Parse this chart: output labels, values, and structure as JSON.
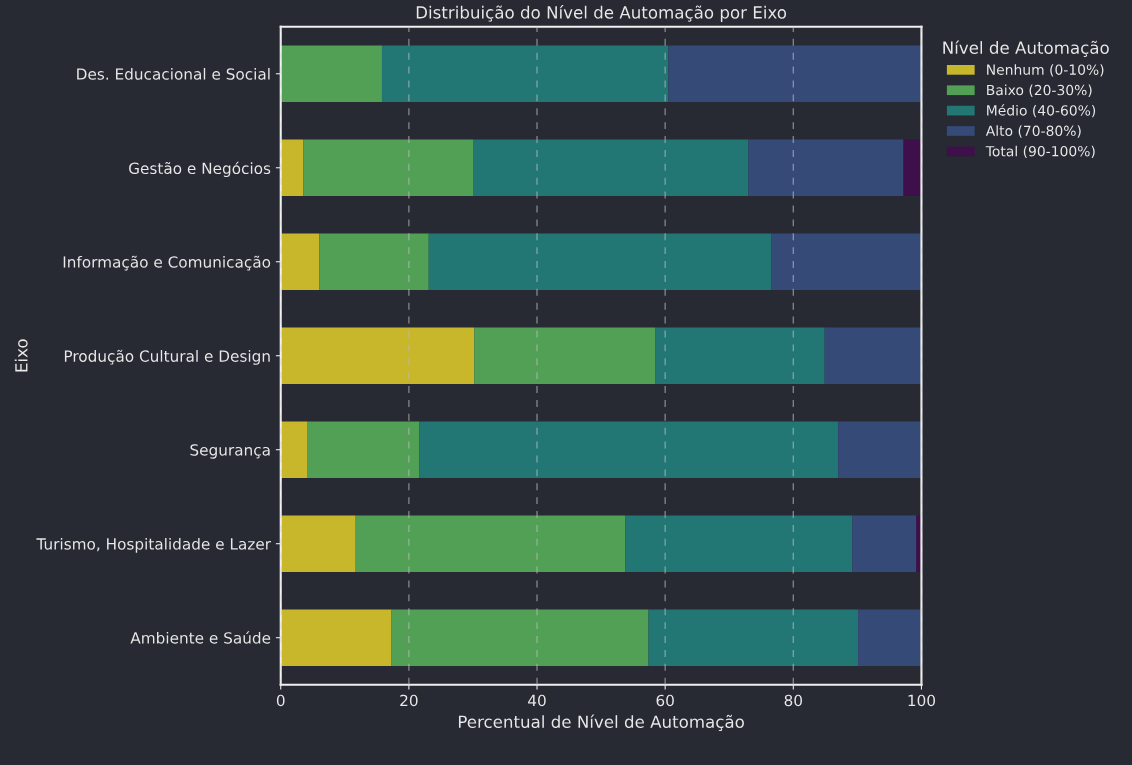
{
  "chart_data": {
    "type": "bar",
    "orientation": "horizontal",
    "stacked": true,
    "title": "Distribuição do Nível de Automação por Eixo",
    "xlabel": "Percentual de Nível de Automação",
    "ylabel": "Eixo",
    "legend_title": "Nível de Automação",
    "legend": "top right",
    "grid": "x",
    "categories": [
      "Des. Educacional e Social",
      "Gestão e Negócios",
      "Informação e Comunicação",
      "Produção Cultural e Design",
      "Segurança",
      "Turismo, Hospitalidade e Lazer",
      "Ambiente e Saúde"
    ],
    "xlim": [
      0,
      100
    ],
    "xticks": [
      0,
      20,
      40,
      60,
      80,
      100
    ],
    "series": [
      {
        "name": "Nenhum (0-10%)",
        "color": "#c8b72a",
        "values": [
          0,
          3.5,
          6.0,
          30.2,
          4.2,
          11.7,
          17.3
        ]
      },
      {
        "name": "Baixo (20-30%)",
        "color": "#52a055",
        "values": [
          15.8,
          26.6,
          17.1,
          28.3,
          17.4,
          42.1,
          40.1
        ]
      },
      {
        "name": "Médio (40-60%)",
        "color": "#227775",
        "values": [
          44.7,
          42.9,
          53.5,
          26.4,
          65.4,
          35.4,
          32.7
        ]
      },
      {
        "name": "Alto (70-80%)",
        "color": "#354a77",
        "values": [
          39.5,
          24.2,
          23.4,
          15.1,
          13.0,
          10.0,
          9.8
        ]
      },
      {
        "name": "Total (90-100%)",
        "color": "#3e0f4a",
        "values": [
          0,
          2.8,
          0,
          0,
          0,
          0.8,
          0
        ]
      }
    ]
  }
}
